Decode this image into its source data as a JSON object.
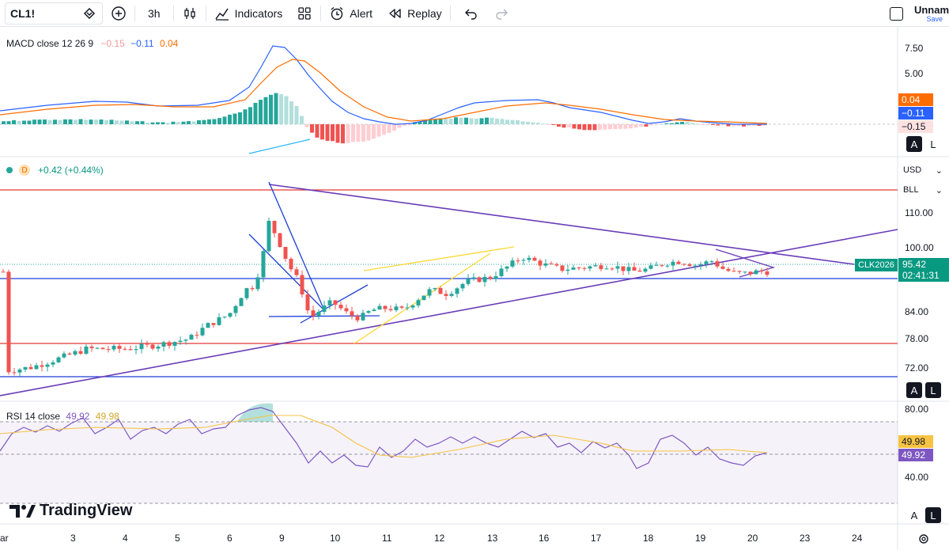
{
  "toolbar": {
    "symbol": "CL1!",
    "interval": "3h",
    "indicators_label": "Indicators",
    "alert_label": "Alert",
    "replay_label": "Replay",
    "layout_name": "Unnam",
    "save_label": "Save"
  },
  "macd": {
    "label": "MACD close 12 26 9",
    "hist": "−0.15",
    "macd": "−0.11",
    "signal": "0.04",
    "axis": [
      "7.50",
      "5.00"
    ],
    "tags": {
      "signal": "0.04",
      "macd": "−0.11",
      "hist": "−0.15"
    }
  },
  "main": {
    "interval_badge": "D",
    "change": "+0.42 (+0.44%)",
    "currency": "USD",
    "unit": "BLL",
    "axis": [
      "110.00",
      "100.00",
      "84.00",
      "78.00",
      "72.00"
    ],
    "symbol_tag": "CLK2026",
    "price": "95.42",
    "countdown": "02:41:31"
  },
  "rsi": {
    "label": "RSI 14 close",
    "value": "49.92",
    "ma": "49.98",
    "axis": [
      "80.00",
      "40.00"
    ],
    "tags": {
      "ma": "49.98",
      "value": "49.92"
    }
  },
  "scale_buttons": {
    "auto": "A",
    "log": "L"
  },
  "dates": [
    "ar",
    "3",
    "4",
    "5",
    "6",
    "9",
    "10",
    "11",
    "12",
    "13",
    "16",
    "17",
    "18",
    "19",
    "20",
    "23",
    "24"
  ],
  "logo": "TradingView",
  "colors": {
    "up": "#26a69a",
    "down": "#ef5350",
    "macd": "#2962ff",
    "signal": "#ff6d00",
    "rsi": "#7e57c2",
    "rsi_ma": "#f6c343"
  }
}
